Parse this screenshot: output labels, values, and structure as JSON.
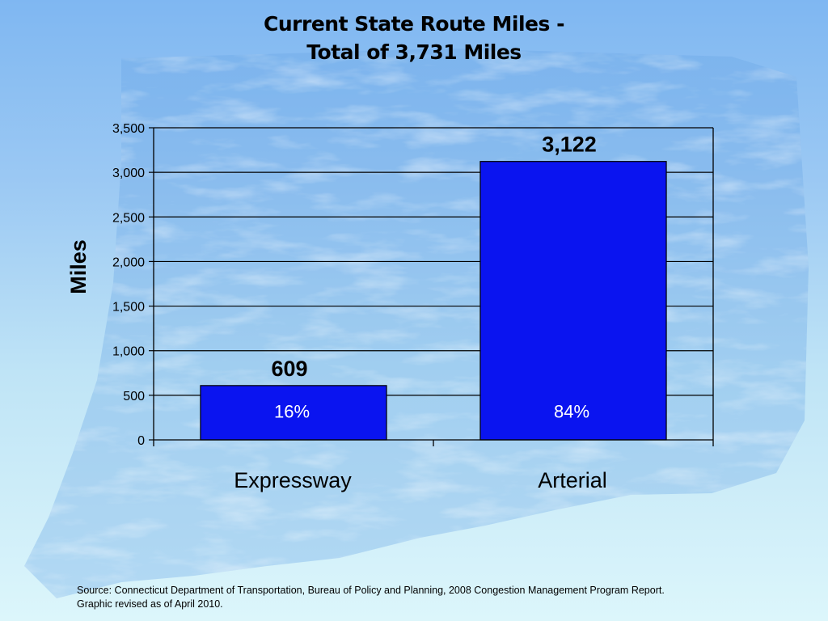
{
  "slide": {
    "title_line1": "Current State Route Miles -",
    "title_line2": "Total of 3,731 Miles",
    "source_line1": "Source: Connecticut Department of Transportation, Bureau of Policy and Planning, 2008 Congestion Management Program Report.",
    "source_line2": "Graphic revised as of April 2010."
  },
  "colors": {
    "bar_fill": "#0a14f0",
    "bar_stroke": "#000000",
    "gridline": "#000000",
    "background_top": "#7fb7f2",
    "background_bottom": "#dcf6fb"
  },
  "chart_data": {
    "type": "bar",
    "title": "Current State Route Miles - Total of 3,731 Miles",
    "xlabel": "",
    "ylabel": "Miles",
    "categories": [
      "Expressway",
      "Arterial"
    ],
    "values": [
      609,
      3122
    ],
    "value_labels": [
      "609",
      "3,122"
    ],
    "percent_labels": [
      "16%",
      "84%"
    ],
    "ylim": [
      0,
      3500
    ],
    "yticks": [
      0,
      500,
      1000,
      1500,
      2000,
      2500,
      3000,
      3500
    ],
    "ytick_labels": [
      "0",
      "500",
      "1,000",
      "1,500",
      "2,000",
      "2,500",
      "3,000",
      "3,500"
    ],
    "grid": true,
    "legend": "none"
  }
}
